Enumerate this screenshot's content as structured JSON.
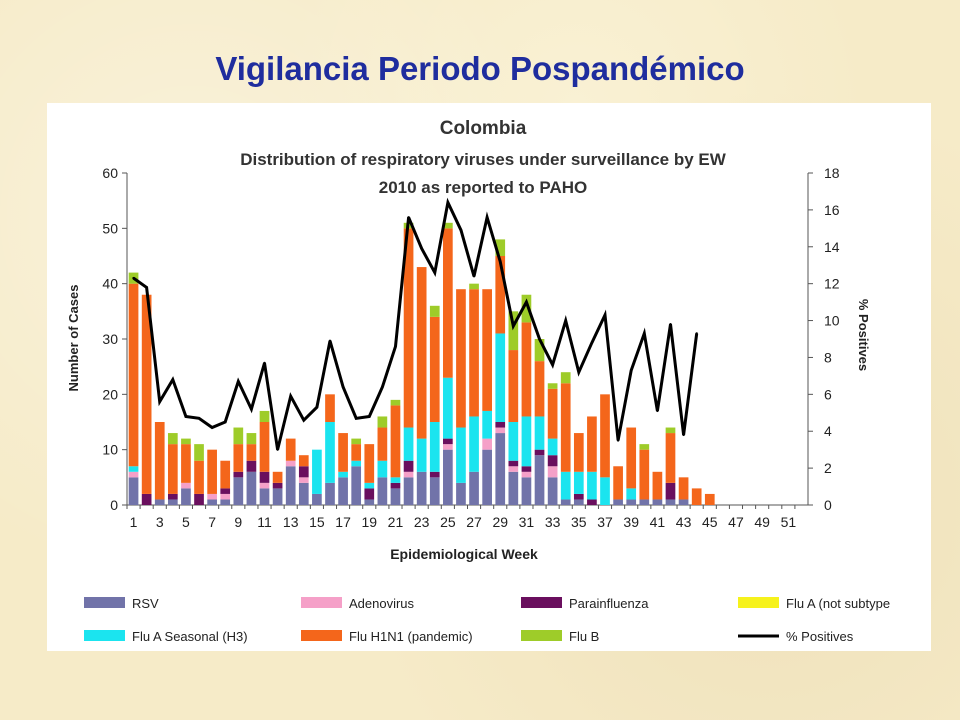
{
  "slide": {
    "title": "Vigilancia Periodo Pospandémico"
  },
  "chart_data": {
    "type": "bar",
    "stacked": true,
    "title": "Colombia",
    "subtitle_lines": [
      "Distribution of respiratory viruses under surveillance by EW",
      "2010 as reported to PAHO"
    ],
    "xlabel": "Epidemiological Week",
    "ylabel": "Number of Cases",
    "y2label": "% Positives",
    "ylim": [
      0,
      60
    ],
    "y2lim": [
      0,
      18
    ],
    "yticks": [
      0,
      10,
      20,
      30,
      40,
      50,
      60
    ],
    "y2ticks": [
      0,
      2,
      4,
      6,
      8,
      10,
      12,
      14,
      16,
      18
    ],
    "xticks": [
      "1",
      "3",
      "5",
      "7",
      "9",
      "11",
      "13",
      "15",
      "17",
      "19",
      "21",
      "23",
      "25",
      "27",
      "29",
      "31",
      "33",
      "35",
      "37",
      "39",
      "41",
      "43",
      "45",
      "47",
      "49",
      "51"
    ],
    "weeks": [
      1,
      2,
      3,
      4,
      5,
      6,
      7,
      8,
      9,
      10,
      11,
      12,
      13,
      14,
      15,
      16,
      17,
      18,
      19,
      20,
      21,
      22,
      23,
      24,
      25,
      26,
      27,
      28,
      29,
      30,
      31,
      32,
      33,
      34,
      35,
      36,
      37,
      38,
      39,
      40,
      41,
      42,
      43,
      44,
      45,
      46,
      47,
      48,
      49,
      50,
      51,
      52
    ],
    "legend_position": "bottom",
    "series": [
      {
        "name": "RSV",
        "kind": "bar",
        "color": "#7173a9",
        "values": [
          5,
          0,
          1,
          1,
          3,
          0,
          1,
          1,
          5,
          6,
          3,
          3,
          7,
          4,
          2,
          4,
          5,
          7,
          1,
          5,
          3,
          5,
          6,
          5,
          10,
          4,
          6,
          10,
          13,
          6,
          5,
          9,
          5,
          1,
          1,
          0,
          0,
          1,
          1,
          1,
          1,
          1,
          1,
          0,
          0,
          0,
          0,
          0,
          0,
          0,
          0,
          0
        ]
      },
      {
        "name": "Adenovirus",
        "kind": "bar",
        "color": "#f5a0c8",
        "values": [
          1,
          0,
          0,
          0,
          1,
          0,
          1,
          1,
          0,
          0,
          1,
          0,
          1,
          1,
          0,
          0,
          0,
          0,
          0,
          0,
          0,
          1,
          0,
          0,
          1,
          0,
          0,
          2,
          1,
          1,
          1,
          0,
          2,
          0,
          0,
          0,
          0,
          0,
          0,
          0,
          0,
          0,
          0,
          0,
          0,
          0,
          0,
          0,
          0,
          0,
          0,
          0
        ]
      },
      {
        "name": "Parainfluenza",
        "kind": "bar",
        "color": "#6a0f5e",
        "values": [
          0,
          2,
          0,
          1,
          0,
          2,
          0,
          1,
          1,
          2,
          2,
          1,
          0,
          2,
          0,
          0,
          0,
          0,
          2,
          0,
          1,
          2,
          0,
          1,
          1,
          0,
          0,
          0,
          1,
          1,
          1,
          1,
          2,
          0,
          1,
          1,
          0,
          0,
          0,
          0,
          0,
          3,
          0,
          0,
          0,
          0,
          0,
          0,
          0,
          0,
          0,
          0
        ]
      },
      {
        "name": "Flu A (not subtype",
        "kind": "bar",
        "color": "#f6f21c",
        "values": [
          0,
          0,
          0,
          0,
          0,
          0,
          0,
          0,
          0,
          0,
          0,
          0,
          0,
          0,
          0,
          0,
          0,
          0,
          0,
          0,
          0,
          0,
          0,
          0,
          0,
          0,
          0,
          0,
          0,
          0,
          0,
          0,
          0,
          0,
          0,
          0,
          0,
          0,
          0,
          0,
          0,
          0,
          0,
          0,
          0,
          0,
          0,
          0,
          0,
          0,
          0,
          0
        ]
      },
      {
        "name": "Flu A Seasonal (H3)",
        "kind": "bar",
        "color": "#1be4ef",
        "values": [
          1,
          0,
          0,
          0,
          0,
          0,
          0,
          0,
          0,
          0,
          0,
          0,
          0,
          0,
          8,
          11,
          1,
          1,
          1,
          3,
          1,
          6,
          6,
          9,
          11,
          10,
          10,
          5,
          16,
          7,
          9,
          6,
          3,
          5,
          4,
          5,
          5,
          0,
          2,
          0,
          0,
          0,
          0,
          0,
          0,
          0,
          0,
          0,
          0,
          0,
          0,
          0
        ]
      },
      {
        "name": "Flu H1N1 (pandemic)",
        "kind": "bar",
        "color": "#f4661b",
        "values": [
          33,
          36,
          14,
          9,
          7,
          6,
          8,
          5,
          5,
          3,
          9,
          2,
          4,
          2,
          0,
          5,
          7,
          3,
          7,
          6,
          13,
          36,
          31,
          19,
          27,
          25,
          23,
          22,
          14,
          13,
          17,
          10,
          9,
          16,
          7,
          10,
          15,
          6,
          11,
          9,
          5,
          9,
          4,
          3,
          2,
          0,
          0,
          0,
          0,
          0,
          0,
          0
        ]
      },
      {
        "name": "Flu B",
        "kind": "bar",
        "color": "#9ecc29",
        "values": [
          2,
          0,
          0,
          2,
          1,
          3,
          0,
          0,
          3,
          2,
          2,
          0,
          0,
          0,
          0,
          0,
          0,
          1,
          0,
          2,
          1,
          1,
          0,
          2,
          1,
          0,
          1,
          0,
          3,
          7,
          5,
          4,
          1,
          2,
          0,
          0,
          0,
          0,
          0,
          1,
          0,
          1,
          0,
          0,
          0,
          0,
          0,
          0,
          0,
          0,
          0,
          0
        ]
      },
      {
        "name": "% Positives",
        "kind": "line",
        "axis": "right",
        "color": "#000000",
        "values": [
          12.3,
          11.8,
          5.6,
          6.8,
          4.8,
          4.7,
          4.2,
          4.5,
          6.7,
          5.2,
          7.7,
          3.0,
          5.9,
          4.6,
          5.3,
          8.9,
          6.4,
          4.7,
          4.8,
          6.4,
          8.6,
          15.6,
          13.9,
          12.6,
          16.4,
          14.9,
          12.4,
          15.6,
          13.2,
          9.7,
          11.0,
          9.0,
          7.6,
          10.0,
          7.2,
          8.8,
          10.3,
          3.5,
          7.3,
          9.3,
          5.1,
          9.8,
          3.8,
          9.3,
          null,
          null,
          null,
          null,
          null,
          null,
          null,
          null
        ]
      }
    ]
  }
}
